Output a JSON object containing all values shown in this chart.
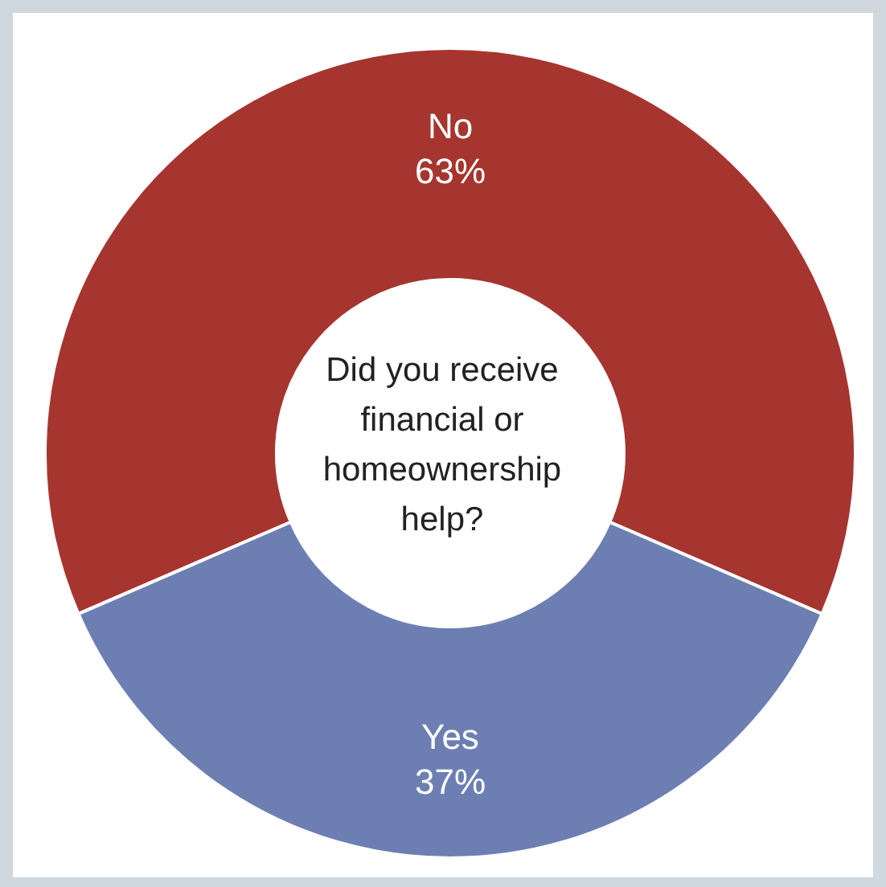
{
  "chart_data": {
    "type": "donut",
    "title": "Did you receive financial or homeownership help?",
    "categories": [
      "No",
      "Yes"
    ],
    "values": [
      63,
      37
    ],
    "value_labels": [
      "63%",
      "37%"
    ],
    "colors": [
      "#a6352f",
      "#6d7fb2"
    ]
  }
}
